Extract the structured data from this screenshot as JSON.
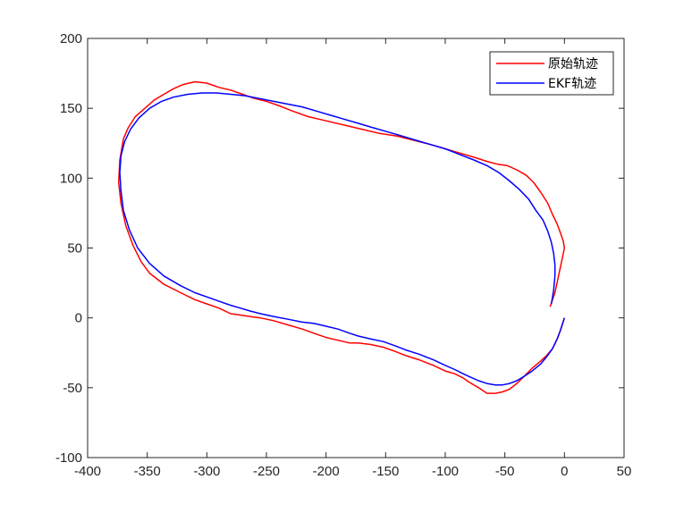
{
  "chart_data": {
    "type": "line",
    "title": "",
    "xlabel": "",
    "ylabel": "",
    "xlim": [
      -400,
      50
    ],
    "ylim": [
      -100,
      200
    ],
    "xticks": [
      -400,
      -350,
      -300,
      -250,
      -200,
      -150,
      -100,
      -50,
      0,
      50
    ],
    "yticks": [
      -100,
      -50,
      0,
      50,
      100,
      150,
      200
    ],
    "grid": false,
    "legend_position": "top-right",
    "series": [
      {
        "name": "原始轨迹",
        "color": "#ff0000",
        "x": [
          0,
          -3,
          -6,
          -10,
          -15,
          -20,
          -27,
          -34,
          -40,
          -46,
          -52,
          -58,
          -65,
          -72,
          -80,
          -85,
          -92,
          -100,
          -110,
          -122,
          -133,
          -142,
          -152,
          -163,
          -173,
          -180,
          -190,
          -200,
          -210,
          -220,
          -232,
          -244,
          -255,
          -264,
          -272,
          -280,
          -290,
          -300,
          -310,
          -322,
          -336,
          -348,
          -355,
          -362,
          -368,
          -372,
          -374,
          -373,
          -370,
          -366,
          -360,
          -352,
          -344,
          -336,
          -328,
          -320,
          -310,
          -300,
          -290,
          -280,
          -270,
          -260,
          -250,
          -240,
          -228,
          -215,
          -200,
          -185,
          -170,
          -155,
          -140,
          -126,
          -112,
          -100,
          -88,
          -76,
          -65,
          -56,
          -48,
          -40,
          -32,
          -26,
          -20,
          -14,
          -10,
          -6,
          -3,
          -1,
          0,
          -2,
          -5,
          -8,
          -12
        ],
        "y": [
          0,
          -8,
          -15,
          -22,
          -27,
          -31,
          -36,
          -42,
          -47,
          -51,
          -53,
          -54,
          -54,
          -50,
          -46,
          -43,
          -40,
          -38,
          -34,
          -30,
          -27,
          -24,
          -21,
          -19,
          -18,
          -18,
          -16,
          -14,
          -11,
          -8,
          -5,
          -2,
          0,
          1,
          2,
          3,
          7,
          10,
          13,
          18,
          24,
          32,
          40,
          52,
          66,
          82,
          97,
          113,
          128,
          136,
          144,
          150,
          156,
          160,
          164,
          167,
          169,
          168,
          165,
          163,
          160,
          157,
          155,
          152,
          148,
          144,
          141,
          138,
          135,
          132,
          130,
          127,
          124,
          121,
          118,
          115,
          112,
          110,
          109,
          106,
          102,
          97,
          90,
          82,
          74,
          67,
          60,
          55,
          50,
          42,
          30,
          18,
          8
        ]
      },
      {
        "name": "EKF轨迹",
        "color": "#0000ff",
        "x": [
          0,
          -3,
          -6,
          -10,
          -15,
          -20,
          -27,
          -34,
          -40,
          -46,
          -52,
          -58,
          -65,
          -72,
          -80,
          -85,
          -92,
          -100,
          -110,
          -122,
          -133,
          -142,
          -152,
          -163,
          -173,
          -180,
          -190,
          -200,
          -210,
          -220,
          -232,
          -244,
          -255,
          -264,
          -272,
          -280,
          -290,
          -300,
          -310,
          -322,
          -336,
          -348,
          -358,
          -365,
          -370,
          -372,
          -373,
          -372,
          -369,
          -364,
          -357,
          -348,
          -338,
          -328,
          -316,
          -304,
          -292,
          -280,
          -268,
          -256,
          -244,
          -232,
          -220,
          -208,
          -196,
          -184,
          -172,
          -160,
          -148,
          -136,
          -124,
          -112,
          -100,
          -88,
          -76,
          -65,
          -55,
          -46,
          -38,
          -30,
          -24,
          -18,
          -14,
          -11,
          -9,
          -8,
          -8,
          -9,
          -11
        ],
        "y": [
          0,
          -8,
          -15,
          -22,
          -28,
          -33,
          -38,
          -42,
          -45,
          -47,
          -48,
          -48,
          -47,
          -45,
          -42,
          -40,
          -37,
          -34,
          -30,
          -26,
          -23,
          -20,
          -17,
          -15,
          -13,
          -11,
          -8,
          -6,
          -4,
          -3,
          -1,
          1,
          3,
          5,
          7,
          9,
          12,
          15,
          18,
          23,
          30,
          39,
          50,
          63,
          77,
          91,
          104,
          116,
          126,
          135,
          143,
          150,
          155,
          158,
          160,
          161,
          161,
          160,
          159,
          157,
          155,
          153,
          151,
          148,
          145,
          142,
          139,
          136,
          133,
          130,
          127,
          124,
          121,
          117,
          113,
          109,
          104,
          98,
          92,
          85,
          77,
          70,
          62,
          54,
          46,
          38,
          30,
          20,
          10
        ]
      }
    ]
  }
}
